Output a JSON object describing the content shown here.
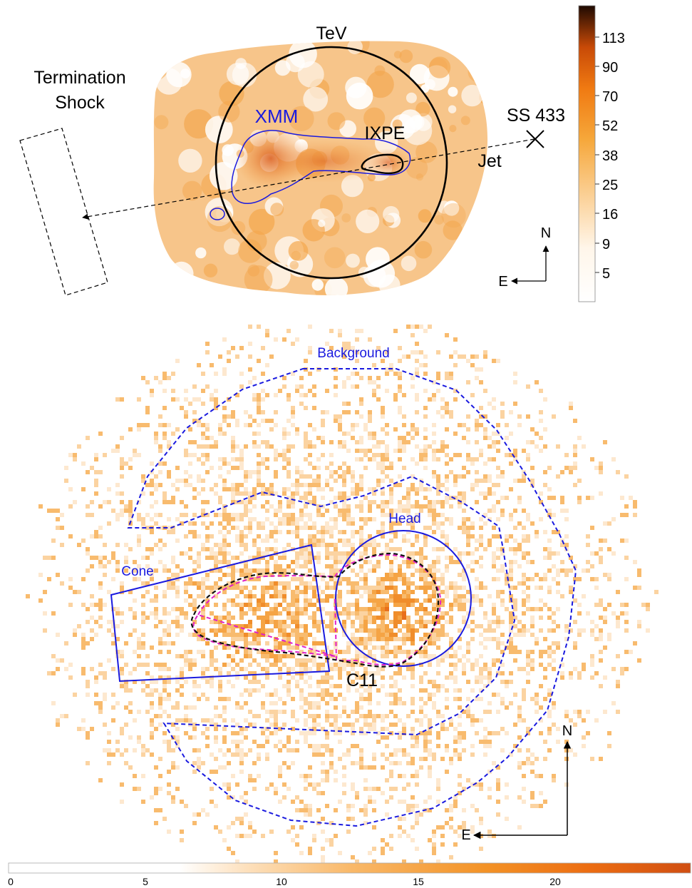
{
  "top_panel": {
    "labels": {
      "tev": "TeV",
      "termination_line1": "Termination",
      "termination_line2": "Shock",
      "xmm": "XMM",
      "ixpe": "IXPE",
      "ss433": "SS 433",
      "jet": "Jet",
      "north": "N",
      "east": "E"
    },
    "colorbar_ticks": [
      "113",
      "90",
      "70",
      "52",
      "38",
      "25",
      "16",
      "9",
      "5"
    ]
  },
  "bottom_panel": {
    "labels": {
      "background": "Background",
      "head": "Head",
      "cone": "Cone",
      "c11": "C11",
      "north": "N",
      "east": "E"
    },
    "colorbar_ticks": [
      "0",
      "5",
      "10",
      "15",
      "20"
    ]
  },
  "colors": {
    "region_blue": "#1a1adf",
    "magenta": "#e020c8",
    "orange_mid": "#f39a1c",
    "orange_deep": "#e0560b"
  }
}
